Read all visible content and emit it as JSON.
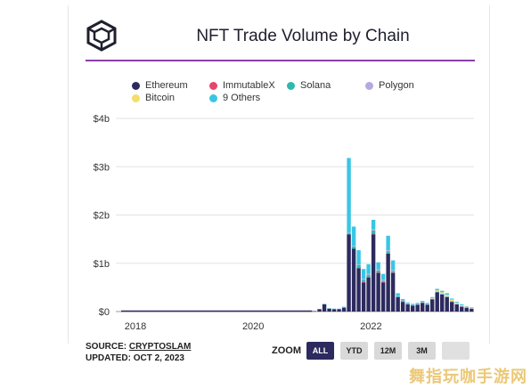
{
  "title": "NFT Trade Volume by Chain",
  "legend": [
    {
      "name": "Ethereum",
      "color": "#2c2a5e"
    },
    {
      "name": "ImmutableX",
      "color": "#e8456b"
    },
    {
      "name": "Solana",
      "color": "#2fb9ad"
    },
    {
      "name": "Polygon",
      "color": "#b7a9de"
    },
    {
      "name": "Bitcoin",
      "color": "#f2de6a"
    },
    {
      "name": "9 Others",
      "color": "#39c6e4"
    }
  ],
  "source": {
    "label": "SOURCE:",
    "link": "CRYPTOSLAM"
  },
  "updated": {
    "label": "UPDATED:",
    "date": "OCT 2, 2023"
  },
  "zoom": {
    "label": "ZOOM",
    "buttons": [
      "ALL",
      "YTD",
      "12M",
      "3M",
      ""
    ],
    "active": "ALL"
  },
  "watermark": "舞指玩咖手游网",
  "chart_data": {
    "type": "bar",
    "title": "NFT Trade Volume by Chain",
    "stacked": true,
    "ylim": [
      0,
      4
    ],
    "yticks": [
      "$0",
      "$1b",
      "$2b",
      "$3b",
      "$4b"
    ],
    "xticks": [
      "2018",
      "2020",
      "2022"
    ],
    "x_range": [
      "2017-09",
      "2023-10"
    ],
    "grid": true,
    "legend_position": "top-left",
    "x": [
      "2021-01",
      "2021-02",
      "2021-03",
      "2021-04",
      "2021-05",
      "2021-06",
      "2021-07",
      "2021-08",
      "2021-09",
      "2021-10",
      "2021-11",
      "2021-12",
      "2022-01",
      "2022-02",
      "2022-03",
      "2022-04",
      "2022-05",
      "2022-06",
      "2022-07",
      "2022-08",
      "2022-09",
      "2022-10",
      "2022-11",
      "2022-12",
      "2023-01",
      "2023-02",
      "2023-03",
      "2023-04",
      "2023-05",
      "2023-06",
      "2023-07",
      "2023-08",
      "2023-09"
    ],
    "series": [
      {
        "name": "Ethereum",
        "color": "#2c2a5e",
        "values": [
          0.01,
          0.05,
          0.15,
          0.06,
          0.05,
          0.05,
          0.08,
          1.6,
          1.3,
          0.9,
          0.6,
          0.7,
          1.6,
          0.8,
          0.6,
          1.2,
          0.8,
          0.3,
          0.2,
          0.15,
          0.12,
          0.14,
          0.18,
          0.14,
          0.25,
          0.4,
          0.35,
          0.3,
          0.2,
          0.15,
          0.1,
          0.08,
          0.06
        ]
      },
      {
        "name": "ImmutableX",
        "color": "#e8456b",
        "values": [
          0,
          0,
          0,
          0,
          0,
          0,
          0,
          0,
          0,
          0,
          0.01,
          0.02,
          0.02,
          0.01,
          0.01,
          0.01,
          0.01,
          0,
          0,
          0,
          0,
          0,
          0,
          0,
          0,
          0,
          0,
          0,
          0,
          0,
          0,
          0,
          0
        ]
      },
      {
        "name": "Solana",
        "color": "#2fb9ad",
        "values": [
          0,
          0,
          0,
          0,
          0,
          0,
          0,
          0.02,
          0.05,
          0.06,
          0.05,
          0.04,
          0.06,
          0.04,
          0.03,
          0.04,
          0.03,
          0.02,
          0.02,
          0.01,
          0.01,
          0.01,
          0.01,
          0.01,
          0.01,
          0.01,
          0.01,
          0.01,
          0.01,
          0,
          0,
          0,
          0
        ]
      },
      {
        "name": "Polygon",
        "color": "#b7a9de",
        "values": [
          0,
          0,
          0,
          0,
          0,
          0,
          0,
          0.01,
          0.01,
          0.01,
          0.02,
          0.02,
          0.02,
          0.02,
          0.02,
          0.02,
          0.02,
          0.01,
          0.01,
          0.01,
          0.01,
          0.01,
          0.01,
          0.01,
          0.01,
          0.01,
          0.01,
          0.01,
          0.01,
          0.01,
          0.01,
          0.01,
          0.01
        ]
      },
      {
        "name": "Bitcoin",
        "color": "#f2de6a",
        "values": [
          0,
          0,
          0,
          0,
          0,
          0,
          0,
          0,
          0,
          0,
          0,
          0,
          0,
          0,
          0,
          0,
          0,
          0,
          0,
          0,
          0,
          0,
          0,
          0,
          0.01,
          0.02,
          0.03,
          0.03,
          0.03,
          0.02,
          0.02,
          0.01,
          0.01
        ]
      },
      {
        "name": "9 Others",
        "color": "#39c6e4",
        "values": [
          0,
          0,
          0.01,
          0.01,
          0.01,
          0.01,
          0.02,
          1.55,
          0.4,
          0.3,
          0.2,
          0.2,
          0.2,
          0.15,
          0.12,
          0.3,
          0.2,
          0.05,
          0.03,
          0.02,
          0.02,
          0.02,
          0.02,
          0.02,
          0.02,
          0.03,
          0.03,
          0.03,
          0.02,
          0.02,
          0.02,
          0.01,
          0.01
        ]
      }
    ]
  }
}
